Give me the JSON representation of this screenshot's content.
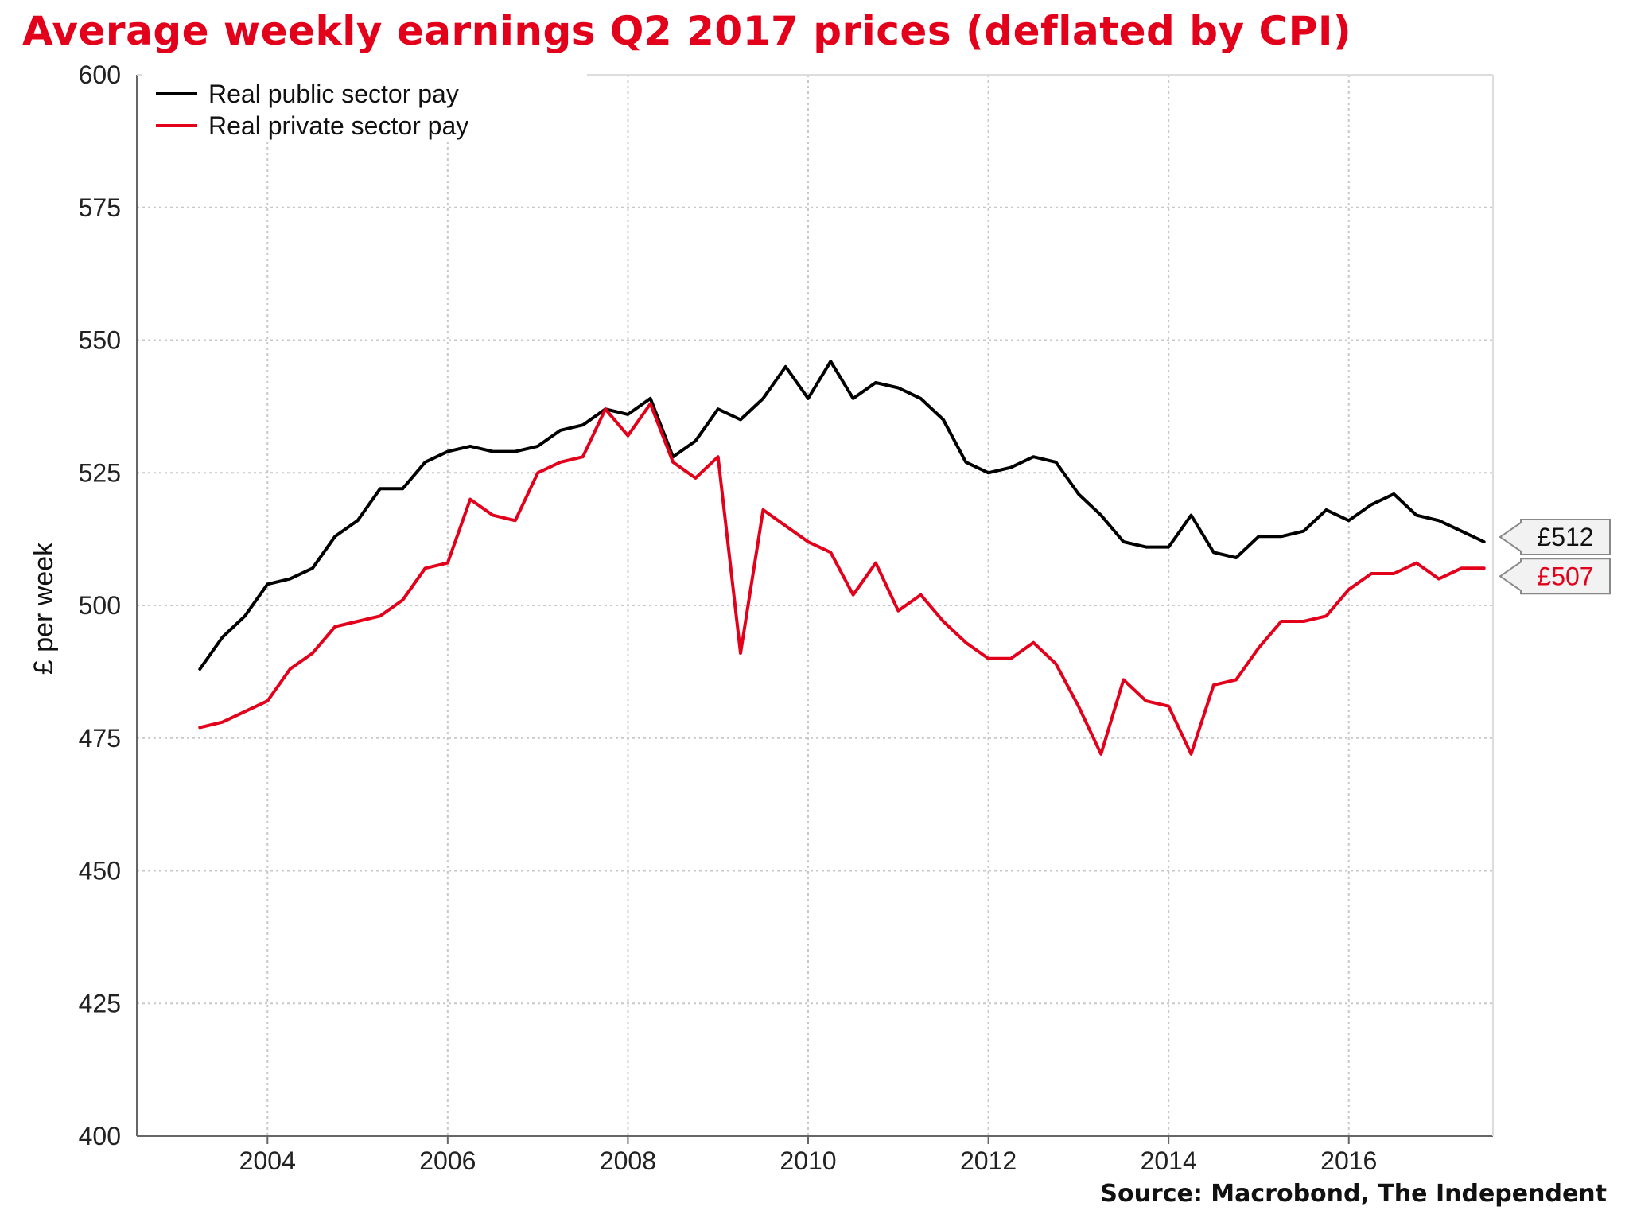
{
  "chart_data": {
    "type": "line",
    "title": "Average weekly earnings Q2 2017 prices (deflated by CPI)",
    "ylabel": "£ per week",
    "xlabel": "",
    "source": "Source: Macrobond, The Independent",
    "xlim": [
      2002.55,
      2017.6
    ],
    "ylim": [
      400,
      600
    ],
    "yticks": [
      400,
      425,
      450,
      475,
      500,
      525,
      550,
      575,
      600
    ],
    "xticks": [
      2004,
      2006,
      2008,
      2010,
      2012,
      2014,
      2016
    ],
    "grid": true,
    "legend_position": "top-left",
    "x": [
      2003.25,
      2003.5,
      2003.75,
      2004.0,
      2004.25,
      2004.5,
      2004.75,
      2005.0,
      2005.25,
      2005.5,
      2005.75,
      2006.0,
      2006.25,
      2006.5,
      2006.75,
      2007.0,
      2007.25,
      2007.5,
      2007.75,
      2008.0,
      2008.25,
      2008.5,
      2008.75,
      2009.0,
      2009.25,
      2009.5,
      2009.75,
      2010.0,
      2010.25,
      2010.5,
      2010.75,
      2011.0,
      2011.25,
      2011.5,
      2011.75,
      2012.0,
      2012.25,
      2012.5,
      2012.75,
      2013.0,
      2013.25,
      2013.5,
      2013.75,
      2014.0,
      2014.25,
      2014.5,
      2014.75,
      2015.0,
      2015.25,
      2015.5,
      2015.75,
      2016.0,
      2016.25,
      2016.5,
      2016.75,
      2017.0,
      2017.25,
      2017.5
    ],
    "series": [
      {
        "name": "Real public sector pay",
        "color": "#000000",
        "values": [
          488,
          494,
          498,
          504,
          505,
          507,
          513,
          516,
          522,
          522,
          527,
          529,
          530,
          529,
          529,
          530,
          533,
          534,
          537,
          536,
          539,
          528,
          531,
          537,
          535,
          539,
          545,
          539,
          546,
          539,
          542,
          541,
          539,
          535,
          527,
          525,
          526,
          528,
          527,
          521,
          517,
          512,
          511,
          511,
          517,
          510,
          509,
          513,
          513,
          514,
          518,
          516,
          519,
          521,
          517,
          516,
          514,
          512
        ],
        "end_label": "£512"
      },
      {
        "name": "Real private sector pay",
        "color": "#e3001b",
        "values": [
          477,
          478,
          480,
          482,
          488,
          491,
          496,
          497,
          498,
          501,
          507,
          508,
          520,
          517,
          516,
          525,
          527,
          528,
          537,
          532,
          538,
          527,
          524,
          528,
          491,
          518,
          515,
          512,
          510,
          502,
          508,
          499,
          502,
          497,
          493,
          490,
          490,
          493,
          489,
          481,
          472,
          486,
          482,
          481,
          472,
          485,
          486,
          492,
          497,
          497,
          498,
          503,
          506,
          506,
          508,
          505,
          507,
          507
        ],
        "end_label": "£507"
      }
    ]
  }
}
